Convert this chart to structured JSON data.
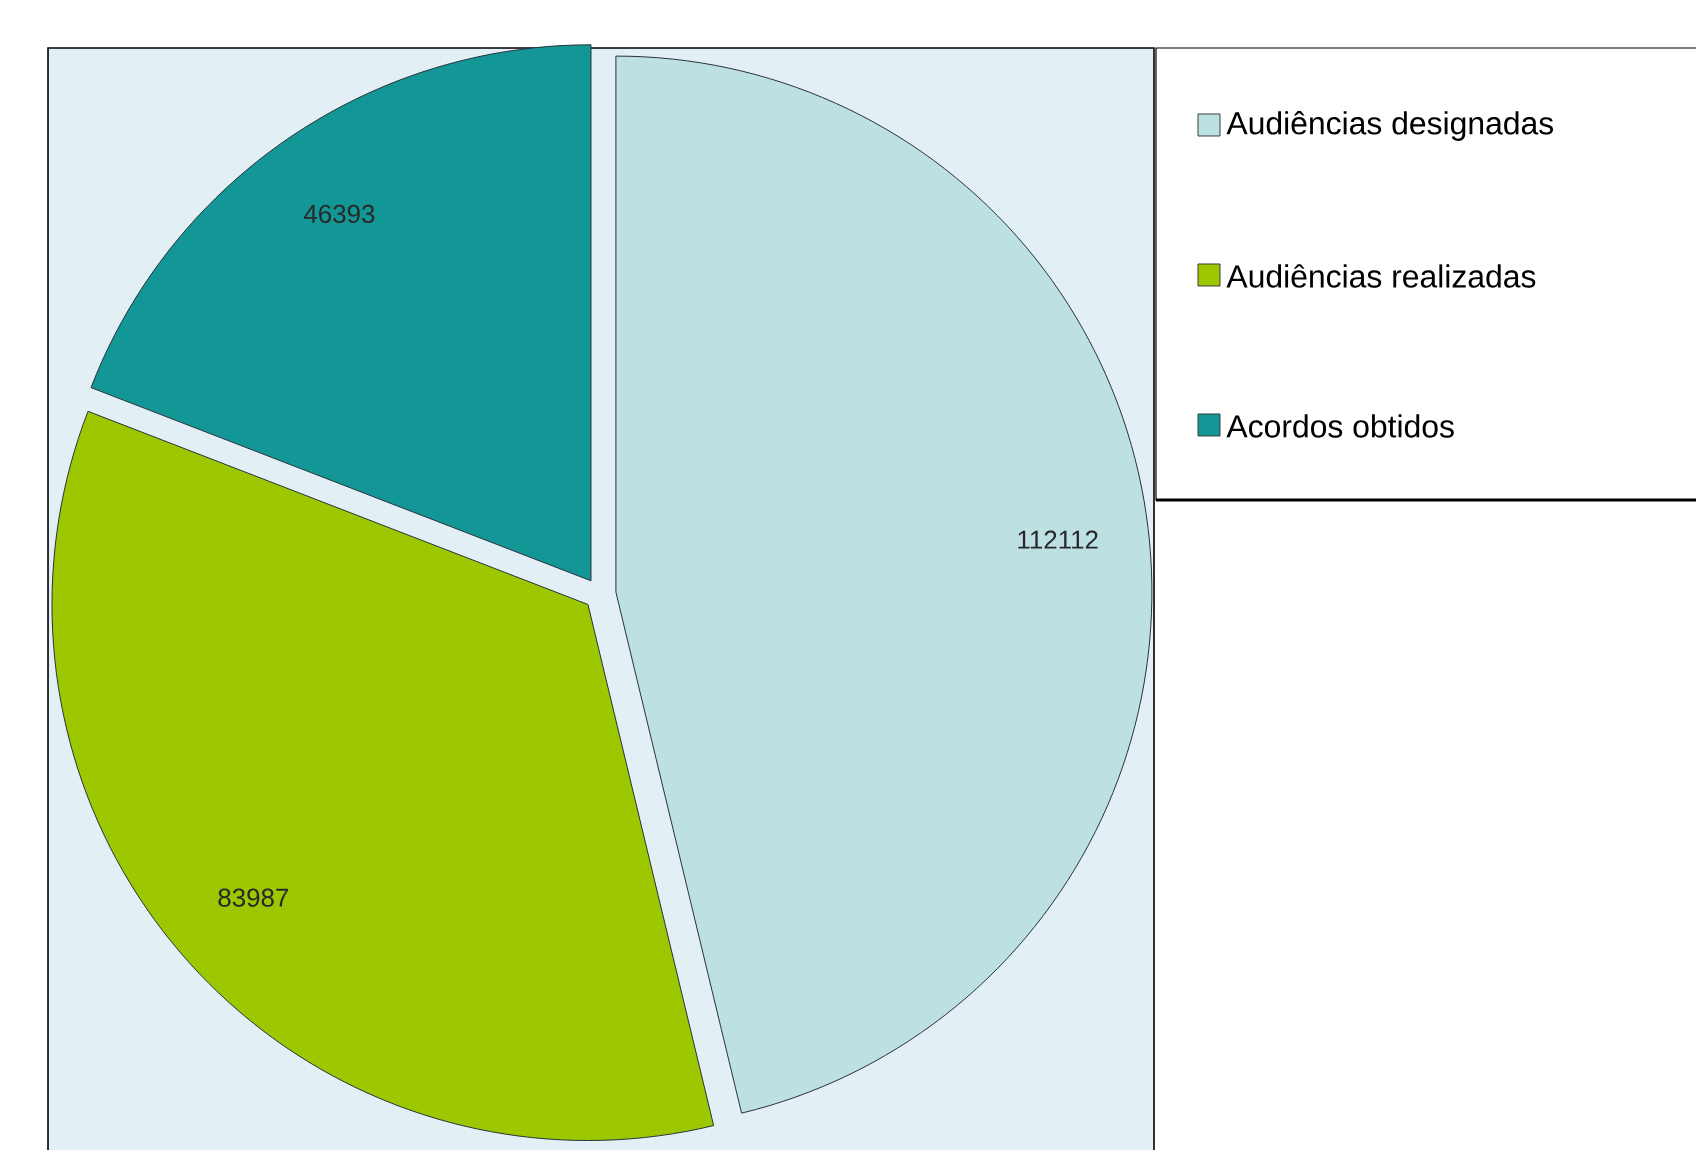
{
  "chart_data": {
    "type": "pie",
    "categories": [
      "Audiências designadas",
      "Audiências realizadas",
      "Acordos obtidos"
    ],
    "values": [
      112112,
      83987,
      46393
    ],
    "colors": [
      "#bde0e3",
      "#9dc800",
      "#129696"
    ],
    "data_labels": true,
    "legend": "top right"
  }
}
